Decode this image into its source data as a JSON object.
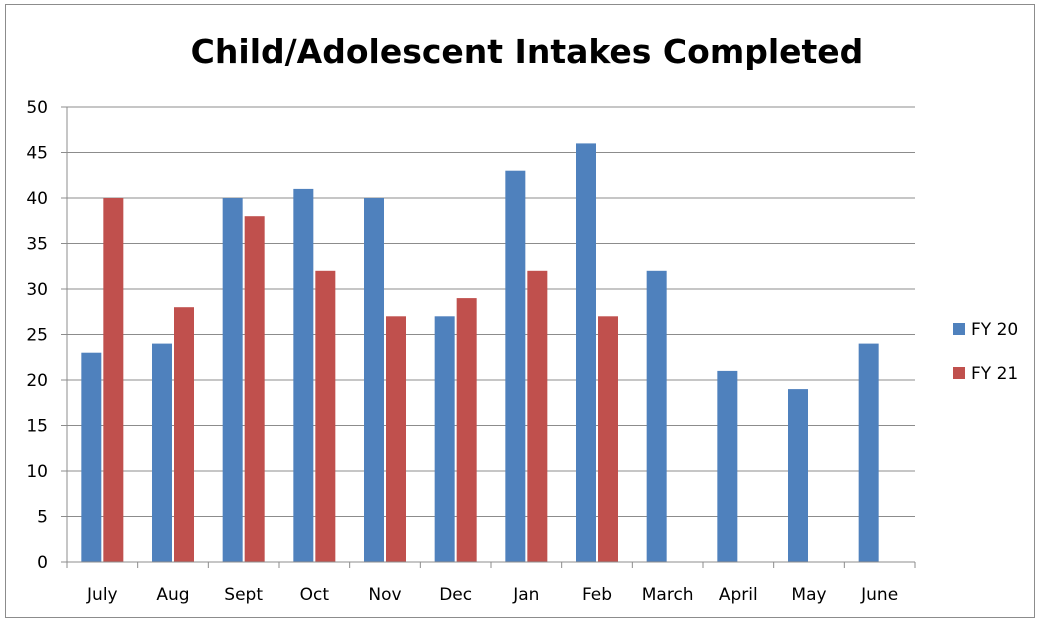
{
  "chart_data": {
    "type": "bar",
    "title": "Child/Adolescent Intakes Completed",
    "xlabel": "",
    "ylabel": "",
    "categories": [
      "July",
      "Aug",
      "Sept",
      "Oct",
      "Nov",
      "Dec",
      "Jan",
      "Feb",
      "March",
      "April",
      "May",
      "June"
    ],
    "series": [
      {
        "name": "FY 20",
        "color": "#4f81bd",
        "values": [
          23,
          24,
          40,
          41,
          40,
          27,
          43,
          46,
          32,
          21,
          19,
          24
        ]
      },
      {
        "name": "FY 21",
        "color": "#c0504d",
        "values": [
          40,
          28,
          38,
          32,
          27,
          29,
          32,
          27,
          null,
          null,
          null,
          null
        ]
      }
    ],
    "ylim": [
      0,
      50
    ],
    "yticks": [
      0,
      5,
      10,
      15,
      20,
      25,
      30,
      35,
      40,
      45,
      50
    ],
    "grid": true,
    "legend_position": "right"
  }
}
